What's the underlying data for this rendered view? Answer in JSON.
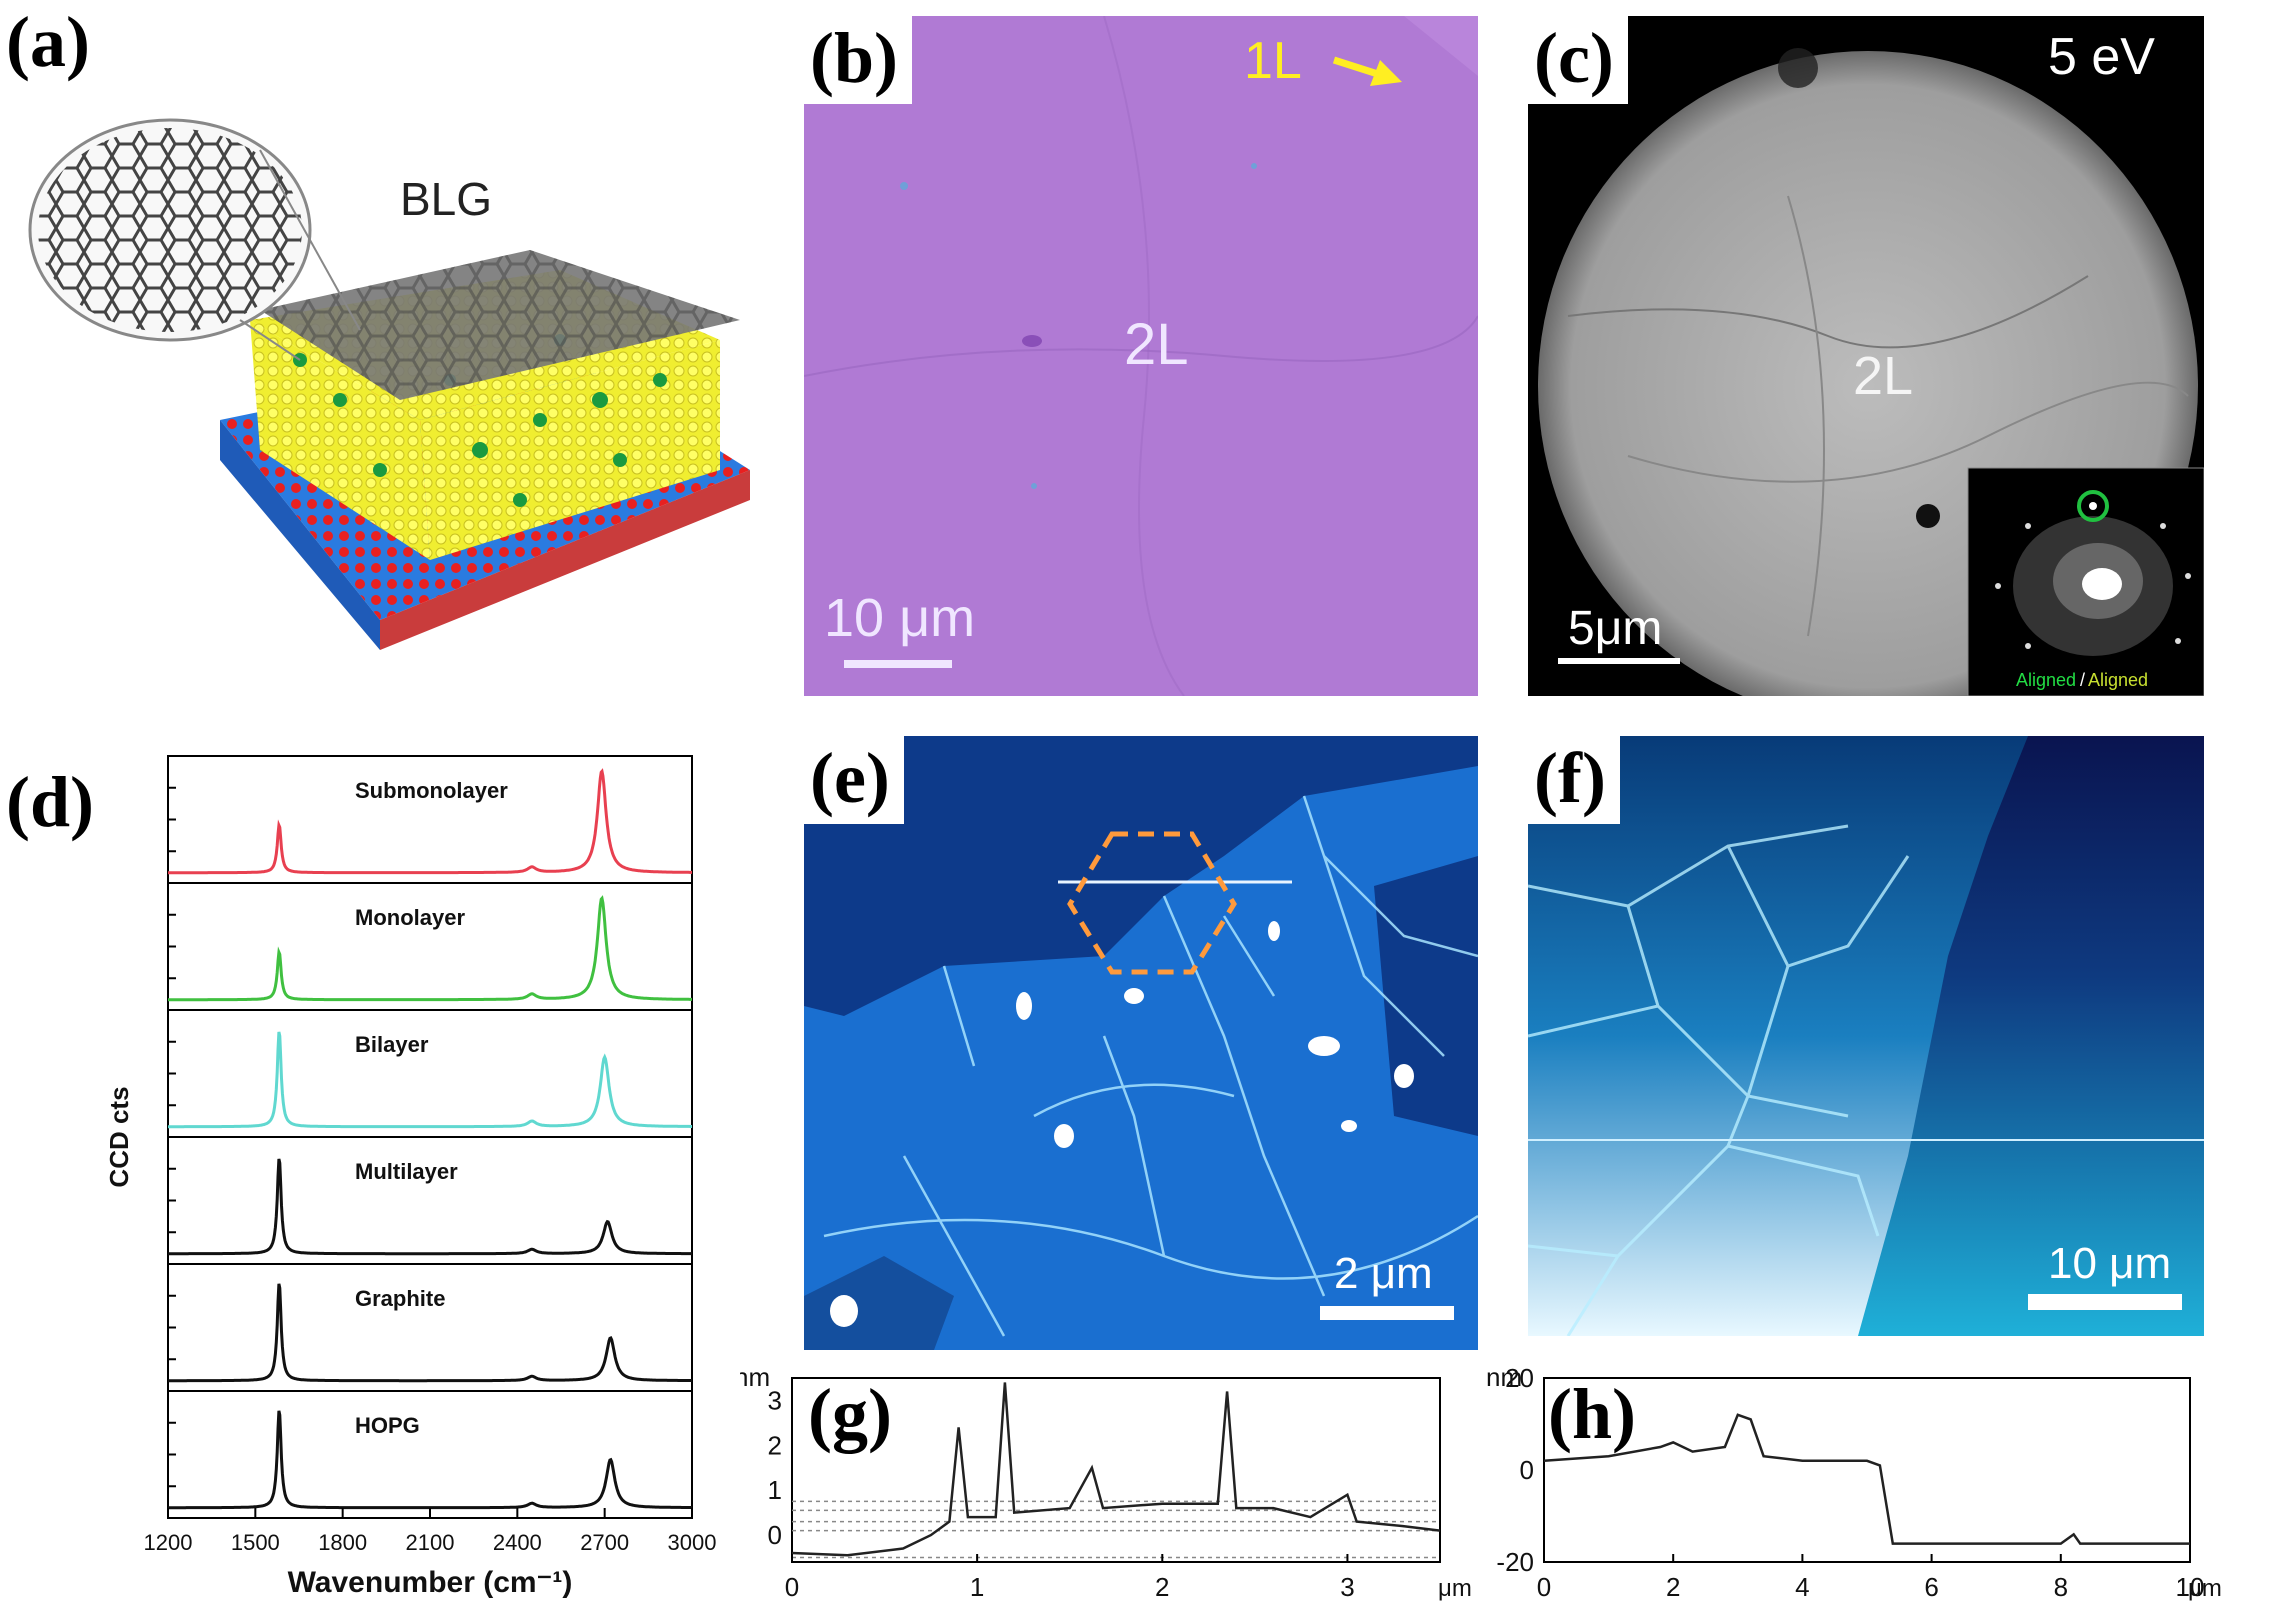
{
  "figure": {
    "panel_labels": [
      "(a)",
      "(b)",
      "(c)",
      "(d)",
      "(e)",
      "(f)",
      "(g)",
      "(h)"
    ],
    "a": {
      "label": "BLG"
    },
    "b": {
      "top_label": "1L",
      "center_label": "2L",
      "scalebar": "10 μm",
      "colors": {
        "substrate": "#b07ad4",
        "arrow": "#ffee22"
      }
    },
    "c": {
      "energy": "5 eV",
      "center_label": "2L",
      "scalebar": "5μm",
      "inset_text_green": "Aligned",
      "inset_text_sep": "/",
      "inset_text_yellow": "Aligned"
    },
    "e": {
      "scalebar": "2 μm",
      "colors": {
        "dark": "#0d3a8a",
        "light": "#1a6fd0",
        "hexagon": "#ff9a3c"
      }
    },
    "f": {
      "scalebar": "10 μm",
      "colors": {
        "left": "#2aa9e0",
        "right": "#0a1a5c"
      }
    }
  },
  "chart_data": [
    {
      "id": "d",
      "type": "line",
      "xlabel": "Wavenumber (cm⁻¹)",
      "ylabel": "CCD cts",
      "xlim": [
        1200,
        3000
      ],
      "xticks": [
        1200,
        1500,
        1800,
        2100,
        2400,
        2700,
        3000
      ],
      "series": [
        {
          "name": "Submonolayer",
          "color": "#e84050",
          "peaks": [
            {
              "x": 1582,
              "h": 0.45
            },
            {
              "x": 2450,
              "h": 0.05
            },
            {
              "x": 2690,
              "h": 0.95
            }
          ]
        },
        {
          "name": "Monolayer",
          "color": "#40c040",
          "peaks": [
            {
              "x": 1582,
              "h": 0.45
            },
            {
              "x": 2450,
              "h": 0.05
            },
            {
              "x": 2690,
              "h": 0.95
            }
          ]
        },
        {
          "name": "Bilayer",
          "color": "#60d8d0",
          "peaks": [
            {
              "x": 1582,
              "h": 0.9
            },
            {
              "x": 2450,
              "h": 0.05
            },
            {
              "x": 2700,
              "h": 0.65
            }
          ]
        },
        {
          "name": "Multilayer",
          "color": "#111111",
          "peaks": [
            {
              "x": 1582,
              "h": 0.9
            },
            {
              "x": 2450,
              "h": 0.04
            },
            {
              "x": 2710,
              "h": 0.3
            }
          ]
        },
        {
          "name": "Graphite",
          "color": "#111111",
          "peaks": [
            {
              "x": 1582,
              "h": 0.92
            },
            {
              "x": 2450,
              "h": 0.04
            },
            {
              "x": 2720,
              "h": 0.4
            }
          ]
        },
        {
          "name": "HOPG",
          "color": "#111111",
          "peaks": [
            {
              "x": 1582,
              "h": 0.92
            },
            {
              "x": 2450,
              "h": 0.04
            },
            {
              "x": 2720,
              "h": 0.45
            }
          ]
        }
      ]
    },
    {
      "id": "g",
      "type": "line",
      "ylabel": "nm",
      "xunit": "μm",
      "xlim": [
        0,
        3.5
      ],
      "ylim": [
        -0.6,
        3.5
      ],
      "xticks": [
        0,
        1,
        2,
        3
      ],
      "yticks": [
        0,
        1,
        2,
        3
      ],
      "reference_lines": [
        -0.5,
        0.1,
        0.3,
        0.55,
        0.75
      ],
      "series": [
        {
          "name": "",
          "points": [
            [
              0,
              -0.4
            ],
            [
              0.3,
              -0.45
            ],
            [
              0.6,
              -0.3
            ],
            [
              0.75,
              0.0
            ],
            [
              0.85,
              0.3
            ],
            [
              0.9,
              2.4
            ],
            [
              0.95,
              0.4
            ],
            [
              1.1,
              0.4
            ],
            [
              1.15,
              3.4
            ],
            [
              1.2,
              0.5
            ],
            [
              1.5,
              0.6
            ],
            [
              1.62,
              1.5
            ],
            [
              1.68,
              0.6
            ],
            [
              2.0,
              0.7
            ],
            [
              2.3,
              0.7
            ],
            [
              2.35,
              3.2
            ],
            [
              2.4,
              0.6
            ],
            [
              2.6,
              0.6
            ],
            [
              2.8,
              0.4
            ],
            [
              3.0,
              0.9
            ],
            [
              3.05,
              0.3
            ],
            [
              3.3,
              0.2
            ],
            [
              3.5,
              0.1
            ]
          ]
        }
      ]
    },
    {
      "id": "h",
      "type": "line",
      "ylabel": "nm",
      "xunit": "μm",
      "xlim": [
        0,
        10
      ],
      "ylim": [
        -20,
        20
      ],
      "xticks": [
        0,
        2,
        4,
        6,
        8,
        10
      ],
      "yticks": [
        -20,
        0,
        20
      ],
      "series": [
        {
          "name": "",
          "points": [
            [
              0,
              2
            ],
            [
              1,
              3
            ],
            [
              1.8,
              5
            ],
            [
              2.0,
              6
            ],
            [
              2.3,
              4
            ],
            [
              2.8,
              5
            ],
            [
              3.0,
              12
            ],
            [
              3.2,
              11
            ],
            [
              3.4,
              3
            ],
            [
              4.0,
              2
            ],
            [
              5.0,
              2
            ],
            [
              5.2,
              1
            ],
            [
              5.4,
              -16
            ],
            [
              6.0,
              -16
            ],
            [
              8.0,
              -16
            ],
            [
              8.2,
              -14
            ],
            [
              8.3,
              -16
            ],
            [
              10,
              -16
            ]
          ]
        }
      ]
    }
  ]
}
